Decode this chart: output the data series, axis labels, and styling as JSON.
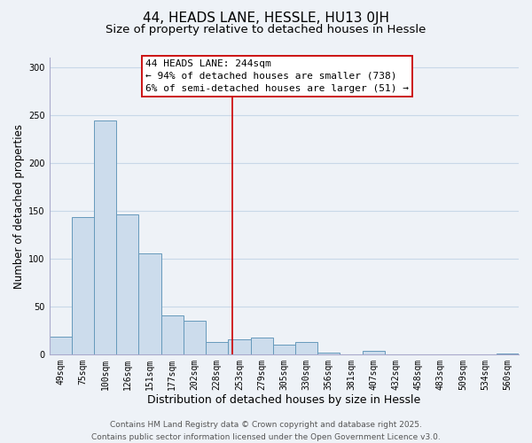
{
  "title": "44, HEADS LANE, HESSLE, HU13 0JH",
  "subtitle": "Size of property relative to detached houses in Hessle",
  "xlabel": "Distribution of detached houses by size in Hessle",
  "ylabel": "Number of detached properties",
  "bar_labels": [
    "49sqm",
    "75sqm",
    "100sqm",
    "126sqm",
    "151sqm",
    "177sqm",
    "202sqm",
    "228sqm",
    "253sqm",
    "279sqm",
    "305sqm",
    "330sqm",
    "356sqm",
    "381sqm",
    "407sqm",
    "432sqm",
    "458sqm",
    "483sqm",
    "509sqm",
    "534sqm",
    "560sqm"
  ],
  "bar_values": [
    19,
    144,
    244,
    146,
    106,
    41,
    35,
    13,
    16,
    18,
    10,
    13,
    2,
    0,
    4,
    0,
    0,
    0,
    0,
    0,
    1
  ],
  "bar_color": "#ccdcec",
  "bar_edge_color": "#6699bb",
  "vline_x": 7.7,
  "vline_color": "#cc0000",
  "annotation_box_text": "44 HEADS LANE: 244sqm\n← 94% of detached houses are smaller (738)\n6% of semi-detached houses are larger (51) →",
  "ylim": [
    0,
    310
  ],
  "yticks": [
    0,
    50,
    100,
    150,
    200,
    250,
    300
  ],
  "grid_color": "#c8d8e8",
  "background_color": "#eef2f7",
  "footer_line1": "Contains HM Land Registry data © Crown copyright and database right 2025.",
  "footer_line2": "Contains public sector information licensed under the Open Government Licence v3.0.",
  "title_fontsize": 11,
  "subtitle_fontsize": 9.5,
  "xlabel_fontsize": 9,
  "ylabel_fontsize": 8.5,
  "tick_fontsize": 7,
  "annotation_fontsize": 8,
  "footer_fontsize": 6.5
}
